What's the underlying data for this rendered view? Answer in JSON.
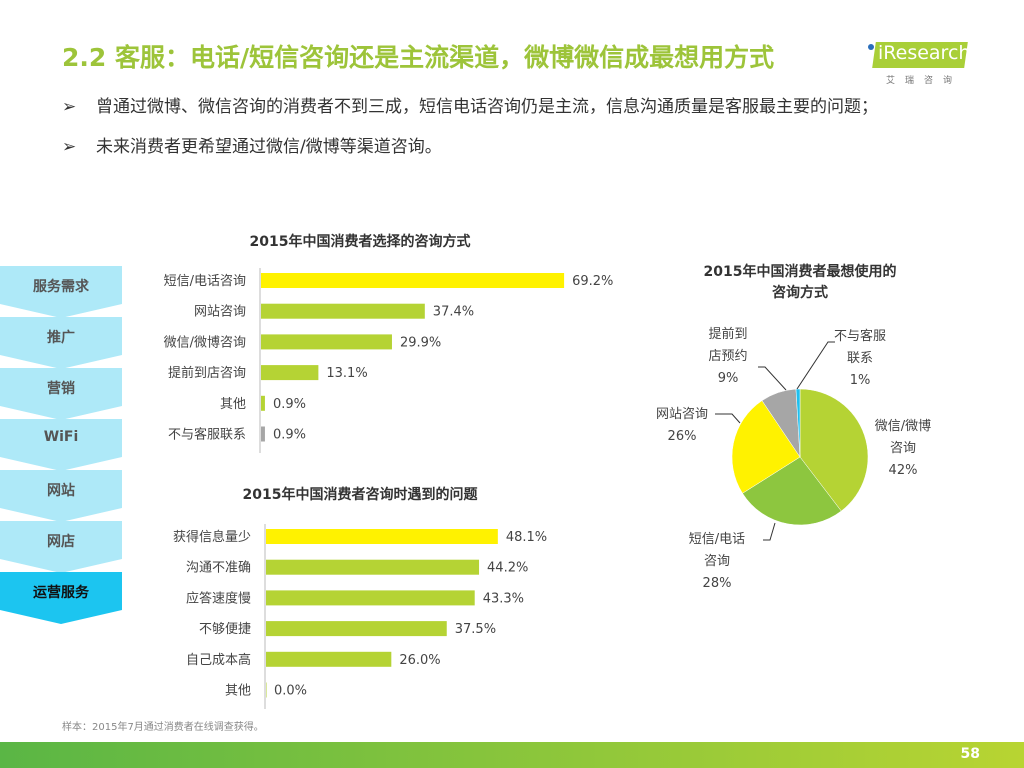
{
  "header": {
    "title": "2.2 客服：电话/短信咨询还是主流渠道，微博微信成最想用方式",
    "logo": "iResearch",
    "logo_sub": "艾瑞咨询"
  },
  "bullets": [
    "曾通过微博、微信咨询的消费者不到三成，短信电话咨询仍是主流，信息沟通质量是客服最主要的问题；",
    "未来消费者更希望通过微信/微博等渠道咨询。"
  ],
  "flow": [
    "服务需求",
    "推广",
    "营销",
    "WiFi",
    "网站",
    "网店",
    "运营服务"
  ],
  "colors": {
    "yellow": "#fff200",
    "green": "#b5d334",
    "green2": "#8dc63f",
    "gray": "#a6a6a6",
    "blue": "#1fc0ef",
    "flow": "#aee9f8",
    "flow_active": "#1cc5f0"
  },
  "chart_data": [
    {
      "type": "bar",
      "title": "2015年中国消费者选择的咨询方式",
      "categories": [
        "短信/电话咨询",
        "网站咨询",
        "微信/微博咨询",
        "提前到店咨询",
        "其他",
        "不与客服联系"
      ],
      "values": [
        69.2,
        37.4,
        29.9,
        13.1,
        0.9,
        0.9
      ],
      "labels": [
        "69.2%",
        "37.4%",
        "29.9%",
        "13.1%",
        "0.9%",
        "0.9%"
      ],
      "xlim": [
        0,
        70
      ]
    },
    {
      "type": "bar",
      "title": "2015年中国消费者咨询时遇到的问题",
      "categories": [
        "获得信息量少",
        "沟通不准确",
        "应答速度慢",
        "不够便捷",
        "自己成本高",
        "其他"
      ],
      "values": [
        48.1,
        44.2,
        43.3,
        37.5,
        26.0,
        0.0
      ],
      "labels": [
        "48.1%",
        "44.2%",
        "43.3%",
        "37.5%",
        "26.0%",
        "0.0%"
      ],
      "xlim": [
        0,
        50
      ]
    },
    {
      "type": "pie",
      "title": "2015年中国消费者最想使用的咨询方式",
      "title_lines": [
        "2015年中国消费者最想使用的",
        "咨询方式"
      ],
      "slices": [
        {
          "name_lines": [
            "微信/微博",
            "咨询"
          ],
          "value": 42,
          "label": "42%"
        },
        {
          "name_lines": [
            "短信/电话",
            "咨询"
          ],
          "value": 28,
          "label": "28%"
        },
        {
          "name_lines": [
            "网站咨询"
          ],
          "value": 26,
          "label": "26%"
        },
        {
          "name_lines": [
            "提前到",
            "店预约"
          ],
          "value": 9,
          "label": "9%"
        },
        {
          "name_lines": [
            "不与客服",
            "联系"
          ],
          "value": 1,
          "label": "1%"
        }
      ]
    }
  ],
  "footnote": "样本：2015年7月通过消费者在线调查获得。",
  "page_number": "58"
}
